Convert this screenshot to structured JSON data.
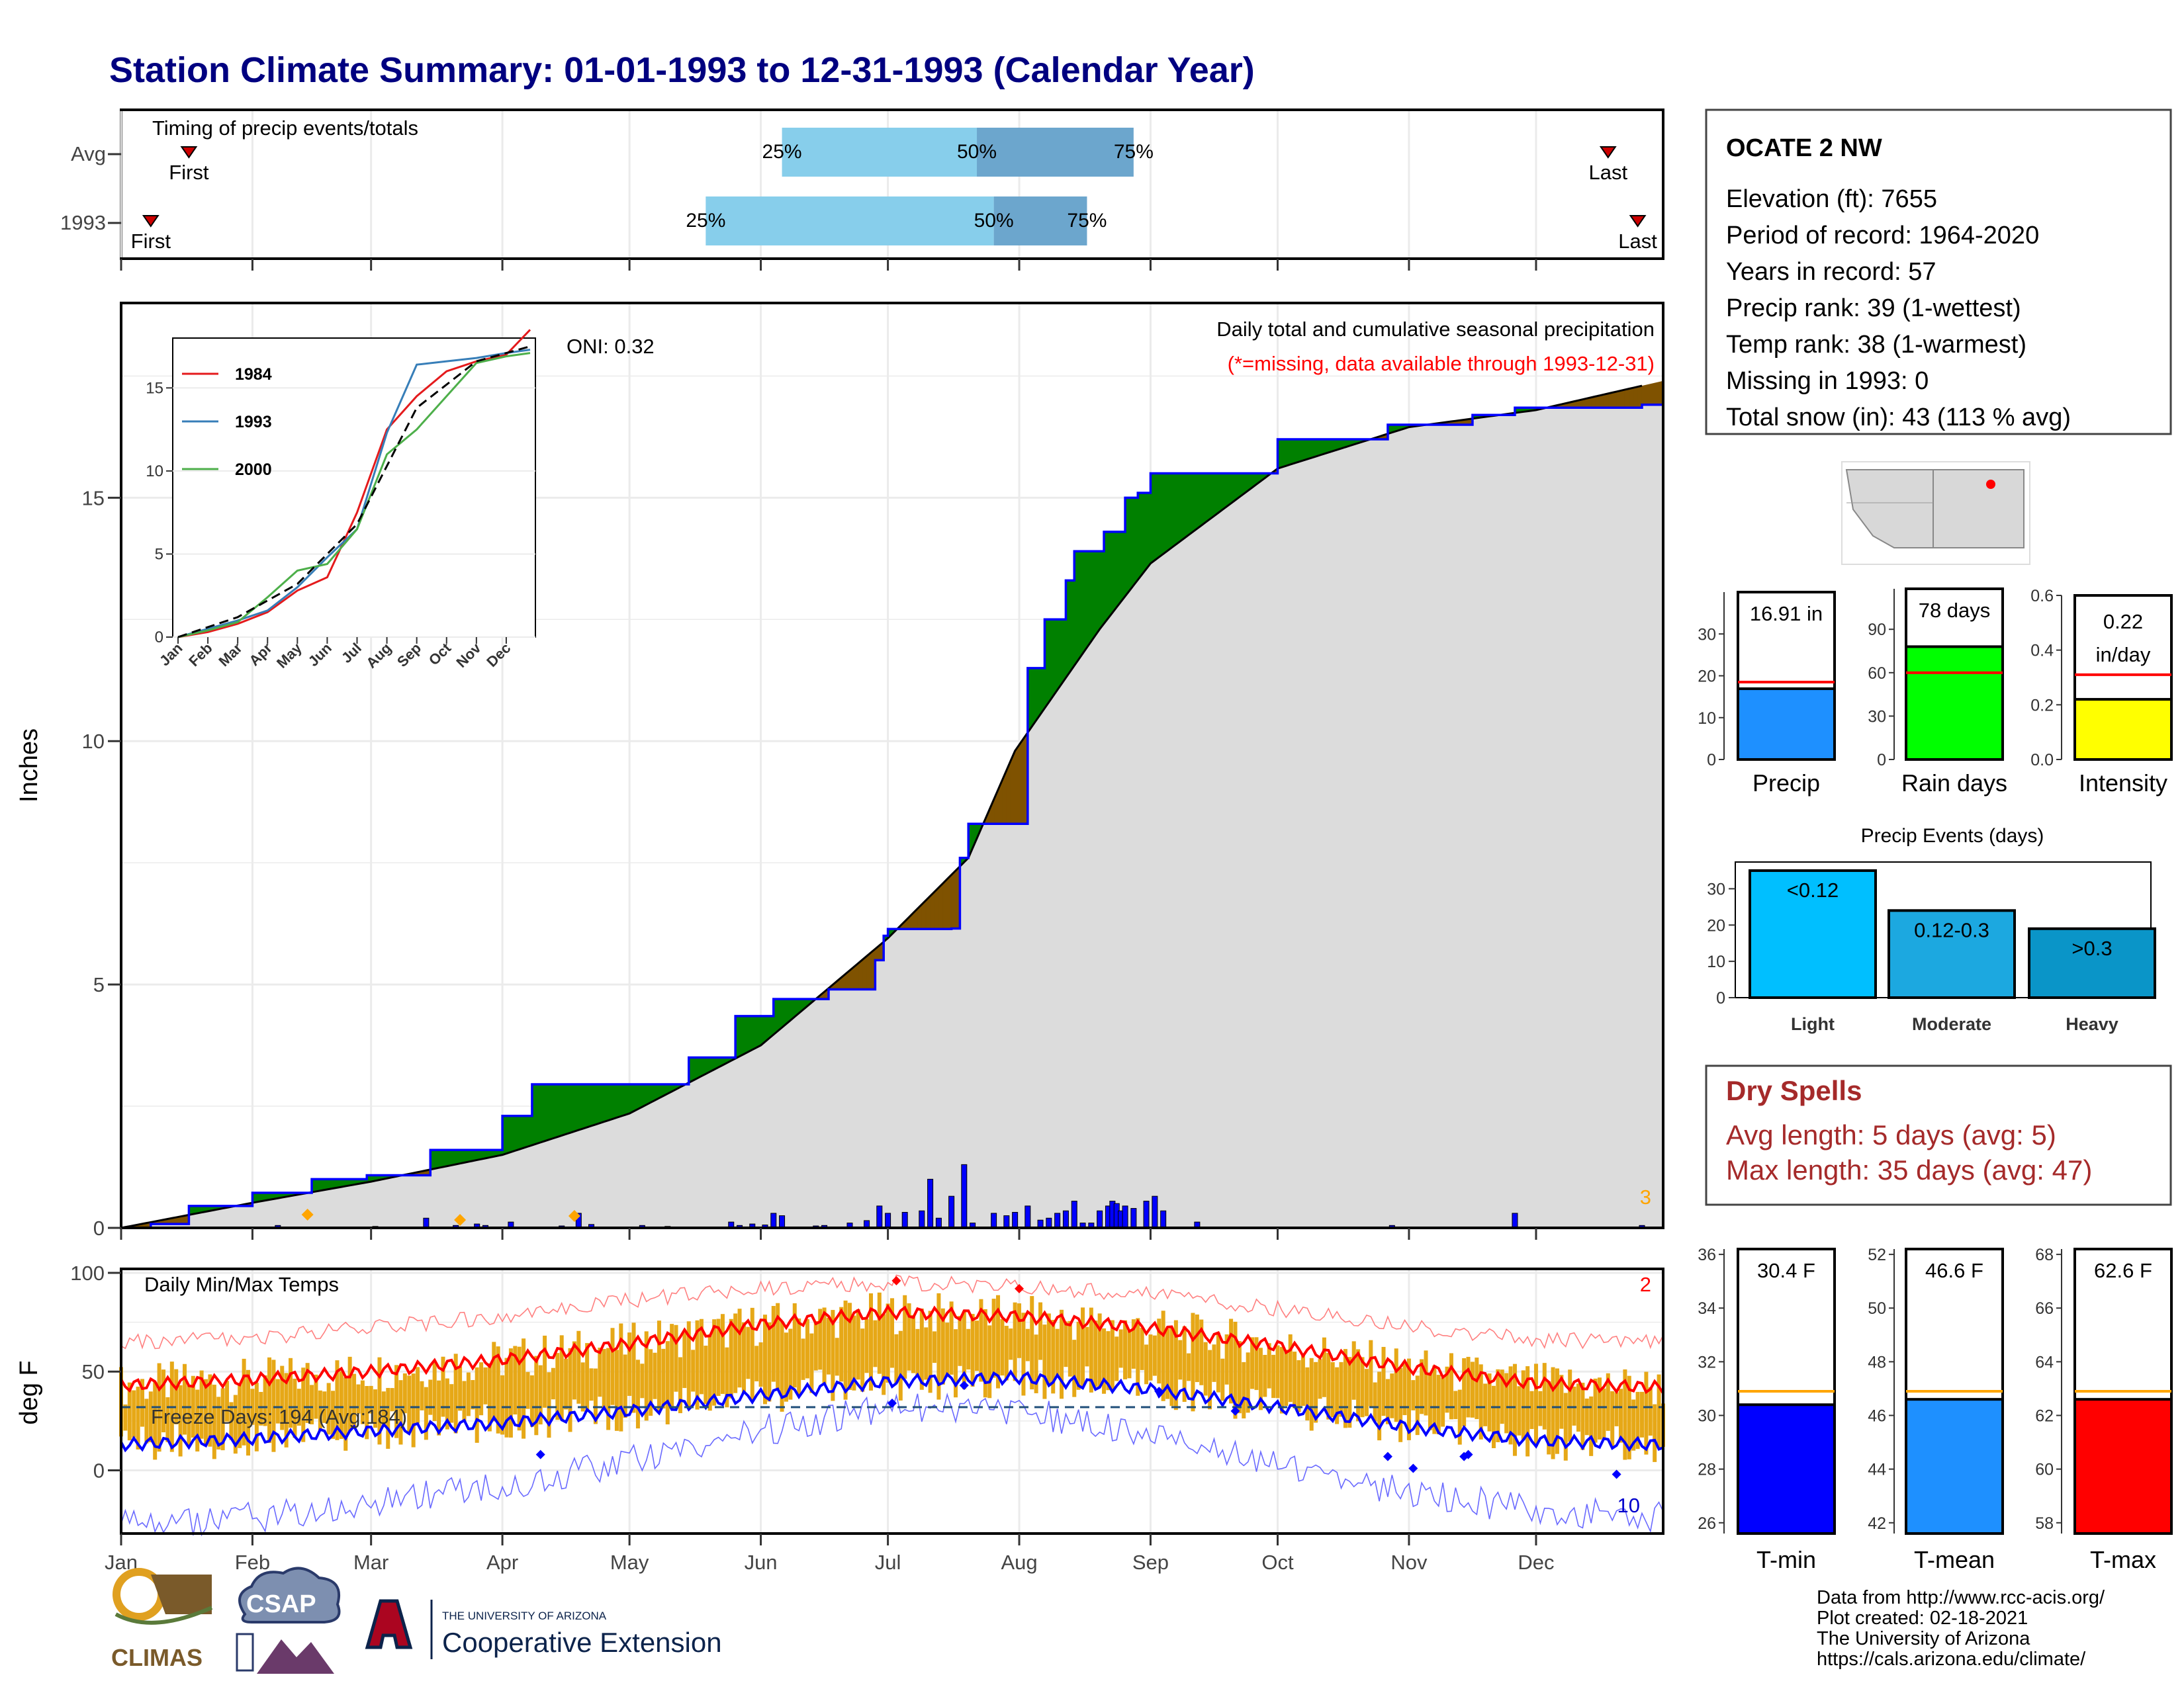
{
  "title": "Station Climate Summary: 01-01-1993 to 12-31-1993 (Calendar Year)",
  "months": [
    "Jan",
    "Feb",
    "Mar",
    "Apr",
    "May",
    "Jun",
    "Jul",
    "Aug",
    "Sep",
    "Oct",
    "Nov",
    "Dec"
  ],
  "timing": {
    "label": "Timing of precip events/totals",
    "rows": [
      {
        "name": "Avg",
        "first_doy": 17,
        "last_doy": 352,
        "q25_doy": 157,
        "q50_doy": 203,
        "q75_doy": 240
      },
      {
        "name": "1993",
        "first_doy": 8,
        "last_doy": 359,
        "q25_doy": 139,
        "q50_doy": 207,
        "q75_doy": 229
      }
    ],
    "first_label": "First",
    "last_label": "Last",
    "q25_label": "25%",
    "q50_label": "50%",
    "q75_label": "75%"
  },
  "precip_panel": {
    "subtitle": "Daily total and cumulative seasonal precipitation",
    "note": "(*=missing, data available through 1993-12-31)",
    "oni": "ONI: 0.32",
    "ylabel": "Inches",
    "corner_count": "3"
  },
  "inset": {
    "legend": [
      "1984",
      "1993",
      "2000"
    ],
    "colors": [
      "#e41a1c",
      "#377eb8",
      "#4daf4a"
    ]
  },
  "temp_panel": {
    "label": "Daily Min/Max Temps",
    "freeze": "Freeze Days: 194 (Avg:184)",
    "ylabel": "deg F",
    "count_hot": "2",
    "count_cold": "10"
  },
  "station": {
    "name": "OCATE 2 NW",
    "lines": [
      "Elevation (ft): 7655",
      "Period of record: 1964-2020",
      "Years in record: 57",
      "Precip rank: 39 (1-wettest)",
      "Temp rank: 38 (1-warmest)",
      "Missing in 1993: 0",
      "Total snow (in): 43 (113 % avg)"
    ]
  },
  "dry_spells": {
    "title": "Dry Spells",
    "avg": "Avg length: 5 days (avg: 5)",
    "max": "Max length: 35 days (avg: 47)"
  },
  "precip_events_title": "Precip Events (days)",
  "footer": {
    "lines": [
      "Data from http://www.rcc-acis.org/",
      "Plot created: 02-18-2021",
      "The University of Arizona",
      "https://cals.arizona.edu/climate/"
    ],
    "logo_climas": "CLIMAS",
    "logo_csap": "CSAP",
    "logo_ua_small": "THE UNIVERSITY OF ARIZONA",
    "logo_ua_big": "Cooperative Extension"
  },
  "chart_data": [
    {
      "id": "cumulative",
      "type": "area",
      "title": "Daily total and cumulative seasonal precipitation",
      "ylabel": "Inches",
      "ylim": [
        0,
        19
      ],
      "x_unit": "day of year 1993",
      "series": [
        {
          "name": "1993",
          "x": [
            1,
            8,
            17,
            31,
            32,
            46,
            59,
            74,
            90,
            91,
            98,
            120,
            135,
            146,
            155,
            168,
            179,
            181,
            182,
            197,
            199,
            201,
            211,
            215,
            219,
            224,
            226,
            233,
            238,
            241,
            244,
            274,
            288,
            300,
            305,
            320,
            330,
            360
          ],
          "y": [
            0,
            0.08,
            0.45,
            0.45,
            0.72,
            1.0,
            1.08,
            1.6,
            1.6,
            2.3,
            2.95,
            2.95,
            3.5,
            4.35,
            4.7,
            4.9,
            5.5,
            6.0,
            6.14,
            6.15,
            7.6,
            8.3,
            8.3,
            11.5,
            12.5,
            13.3,
            13.9,
            14.3,
            15.0,
            15.1,
            15.5,
            16.2,
            16.2,
            16.5,
            16.5,
            16.7,
            16.85,
            16.91
          ]
        },
        {
          "name": "Avg",
          "x": [
            1,
            31,
            60,
            91,
            121,
            152,
            182,
            201,
            212,
            232,
            244,
            274,
            305,
            335,
            365
          ],
          "y": [
            0,
            0.5,
            0.95,
            1.5,
            2.35,
            3.75,
            5.95,
            7.6,
            9.8,
            12.3,
            13.65,
            15.6,
            16.45,
            16.8,
            17.4
          ]
        }
      ],
      "daily_precip": {
        "x": [
          38,
          61,
          73,
          80,
          85,
          87,
          93,
          105,
          109,
          112,
          124,
          130,
          145,
          147,
          150,
          153,
          155,
          157,
          165,
          167,
          173,
          177,
          180,
          182,
          186,
          190,
          192,
          194,
          197,
          200,
          202,
          207,
          210,
          212,
          215,
          218,
          220,
          222,
          224,
          226,
          228,
          230,
          232,
          234,
          235,
          236,
          237,
          238,
          240,
          243,
          245,
          247,
          255,
          301,
          330,
          360
        ],
        "y": [
          0.05,
          0.03,
          0.2,
          0.05,
          0.08,
          0.05,
          0.12,
          0.04,
          0.3,
          0.07,
          0.05,
          0.03,
          0.12,
          0.05,
          0.08,
          0.06,
          0.3,
          0.25,
          0.04,
          0.05,
          0.1,
          0.15,
          0.45,
          0.3,
          0.32,
          0.35,
          1.0,
          0.2,
          0.65,
          1.3,
          0.1,
          0.3,
          0.25,
          0.32,
          0.45,
          0.16,
          0.2,
          0.3,
          0.35,
          0.55,
          0.1,
          0.1,
          0.35,
          0.45,
          0.55,
          0.5,
          0.35,
          0.45,
          0.4,
          0.55,
          0.65,
          0.35,
          0.12,
          0.05,
          0.3,
          0.05
        ]
      }
    },
    {
      "id": "inset",
      "type": "line",
      "ylim": [
        0,
        18
      ],
      "x_categories": [
        "Jan",
        "Feb",
        "Mar",
        "Apr",
        "May",
        "Jun",
        "Jul",
        "Aug",
        "Sep",
        "Oct",
        "Nov",
        "Dec"
      ],
      "series": [
        {
          "name": "1984",
          "x": [
            0,
            1,
            2,
            3,
            4,
            5,
            6,
            7,
            8,
            9,
            10,
            11,
            11.8
          ],
          "y": [
            0,
            0.3,
            0.8,
            1.5,
            2.8,
            3.6,
            7.5,
            12.5,
            14.5,
            16.0,
            16.6,
            17.0,
            18.5
          ]
        },
        {
          "name": "1993",
          "x": [
            0,
            1,
            2,
            3,
            4,
            5,
            6,
            7,
            8,
            9,
            10,
            11,
            11.8
          ],
          "y": [
            0,
            0.5,
            1.0,
            1.6,
            3.0,
            4.8,
            6.5,
            12.3,
            16.4,
            16.6,
            16.8,
            17.1,
            17.3
          ]
        },
        {
          "name": "2000",
          "x": [
            0,
            1,
            2,
            3,
            4,
            5,
            6,
            7,
            8,
            9,
            10,
            11,
            11.8
          ],
          "y": [
            0,
            0.4,
            0.9,
            2.4,
            4.0,
            4.4,
            6.5,
            11.0,
            12.5,
            14.5,
            16.5,
            16.9,
            17.1
          ]
        },
        {
          "name": "Avg",
          "x": [
            0,
            2,
            4,
            6,
            8,
            10,
            11.8
          ],
          "y": [
            0,
            1.2,
            3.2,
            6.8,
            13.8,
            16.6,
            17.5
          ]
        }
      ]
    },
    {
      "id": "temps",
      "type": "line",
      "title": "Daily Min/Max Temps",
      "ylabel": "deg F",
      "ylim": [
        -32,
        102
      ],
      "x_unit": "day of year 1993",
      "series": [
        {
          "name": "Avg max",
          "x": [
            1,
            32,
            60,
            91,
            121,
            152,
            182,
            213,
            244,
            274,
            305,
            335,
            365
          ],
          "y": [
            43,
            46,
            50,
            56,
            64,
            74,
            80,
            78,
            72,
            63,
            52,
            44,
            42
          ]
        },
        {
          "name": "Avg min",
          "x": [
            1,
            32,
            60,
            91,
            121,
            152,
            182,
            213,
            244,
            274,
            305,
            335,
            365
          ],
          "y": [
            13,
            16,
            20,
            24,
            30,
            38,
            45,
            47,
            41,
            32,
            22,
            15,
            13
          ]
        },
        {
          "name": "Record max",
          "x": [
            1,
            32,
            60,
            91,
            121,
            152,
            182,
            213,
            244,
            274,
            305,
            335,
            365
          ],
          "y": [
            65,
            67,
            72,
            78,
            86,
            92,
            95,
            93,
            89,
            82,
            73,
            66,
            65
          ]
        },
        {
          "name": "Record min",
          "x": [
            1,
            32,
            60,
            91,
            121,
            152,
            182,
            213,
            244,
            274,
            305,
            335,
            365
          ],
          "y": [
            -28,
            -24,
            -16,
            -8,
            5,
            20,
            32,
            30,
            18,
            2,
            -12,
            -20,
            -24
          ]
        },
        {
          "name": "Freeze",
          "x": [
            1,
            365
          ],
          "y": [
            32,
            32
          ]
        }
      ]
    },
    {
      "id": "precip_total",
      "type": "bar",
      "categories": [
        "Precip"
      ],
      "values": [
        16.91
      ],
      "avg": 18.5,
      "ylim": [
        0,
        40
      ],
      "label": "16.91 in",
      "ticks": [
        0,
        10,
        20,
        30
      ]
    },
    {
      "id": "rain_days",
      "type": "bar",
      "categories": [
        "Rain days"
      ],
      "values": [
        78
      ],
      "avg": 60,
      "ylim": [
        0,
        118
      ],
      "label": "78 days",
      "ticks": [
        0,
        30,
        60,
        90
      ]
    },
    {
      "id": "intensity",
      "type": "bar",
      "categories": [
        "Intensity"
      ],
      "values": [
        0.22
      ],
      "avg": 0.31,
      "ylim": [
        0,
        0.6
      ],
      "label": "0.22 in/day",
      "label_top": "0.22",
      "label_bottom": "in/day",
      "ticks": [
        "0.0",
        "0.2",
        "0.4",
        "0.6"
      ]
    },
    {
      "id": "precip_events",
      "type": "bar",
      "title": "Precip Events (days)",
      "categories": [
        "Light",
        "Moderate",
        "Heavy"
      ],
      "bar_labels": [
        "<0.12",
        "0.12-0.3",
        ">0.3"
      ],
      "values": [
        35,
        24,
        19
      ],
      "ylim": [
        0,
        37
      ],
      "ticks": [
        0,
        10,
        20,
        30
      ],
      "colors": [
        "#00bfff",
        "#1ca8e0",
        "#0a95c8"
      ]
    },
    {
      "id": "tmin",
      "type": "bar",
      "categories": [
        "T-min"
      ],
      "values": [
        30.4
      ],
      "avg": 30.9,
      "ylim": [
        25.6,
        36.2
      ],
      "label": "30.4 F",
      "ticks": [
        26,
        28,
        30,
        32,
        34,
        36
      ],
      "color": "#0000ff"
    },
    {
      "id": "tmean",
      "type": "bar",
      "categories": [
        "T-mean"
      ],
      "values": [
        46.6
      ],
      "avg": 46.9,
      "ylim": [
        41.6,
        52.2
      ],
      "label": "46.6 F",
      "ticks": [
        42,
        44,
        46,
        48,
        50,
        52
      ],
      "color": "#1e90ff"
    },
    {
      "id": "tmax",
      "type": "bar",
      "categories": [
        "T-max"
      ],
      "values": [
        62.6
      ],
      "avg": 62.9,
      "ylim": [
        57.6,
        68.2
      ],
      "label": "62.6 F",
      "ticks": [
        58,
        60,
        62,
        64,
        66,
        68
      ],
      "color": "#ff0000"
    }
  ]
}
